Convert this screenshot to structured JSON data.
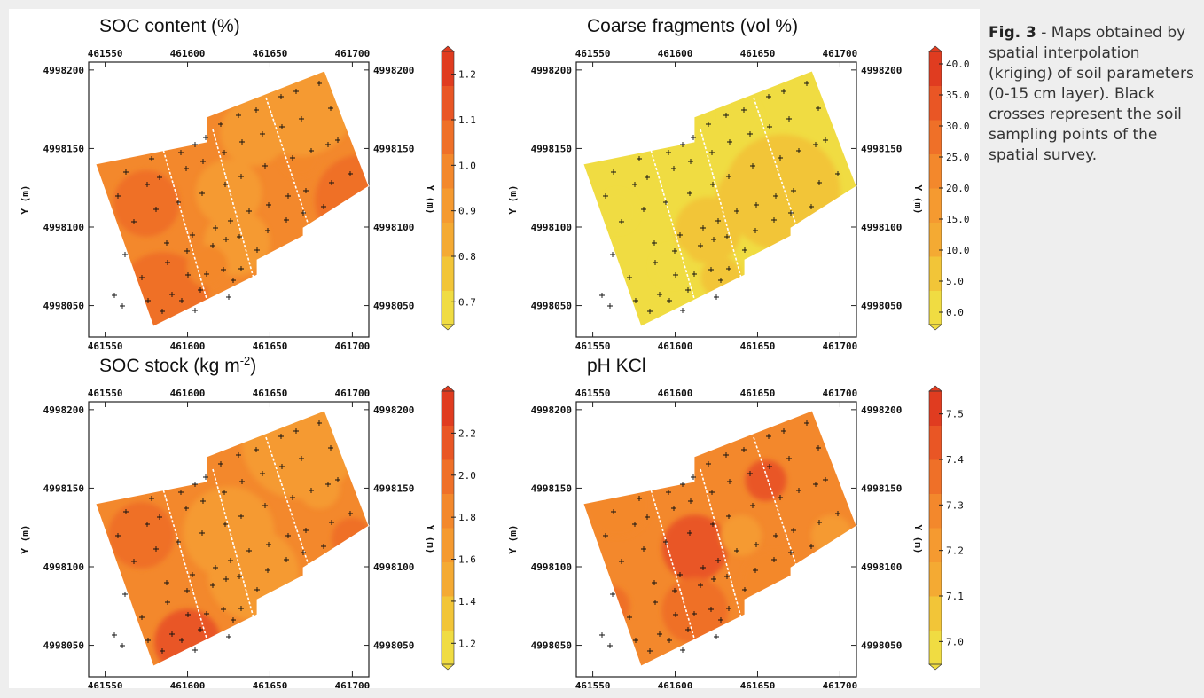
{
  "caption": {
    "figure_label": "Fig. 3",
    "text": " - Maps obtained by spatial interpolation (kriging) of soil parameters (0-15 cm layer). Black crosses represent the soil sampling points of the spatial survey."
  },
  "palette": [
    "#f0dc42",
    "#f2c538",
    "#f4aa33",
    "#f59a30",
    "#f3882c",
    "#ef7028",
    "#e95625",
    "#e03c20"
  ],
  "chart_data": [
    {
      "type": "heatmap",
      "title": "SOC content (%)",
      "title_base": "SOC content (%)",
      "title_sup": "",
      "title_tail": "",
      "xlabel": "",
      "ylabel": "Y (m)",
      "ylabel_right": "Y (m)",
      "x_ticks": [
        "461550",
        "461600",
        "461650",
        "461700"
      ],
      "y_ticks": [
        "4998200",
        "4998150",
        "4998100",
        "4998050"
      ],
      "xlim": [
        461540,
        461710
      ],
      "ylim": [
        4998030,
        4998205
      ],
      "colorbar_ticks": [
        "1.2",
        "1.1",
        "1.0",
        "0.9",
        "0.8",
        "0.7"
      ],
      "colorbar_range": [
        0.65,
        1.25
      ],
      "blobs": [
        {
          "x": 461585,
          "y": 4998055,
          "v": 1.22
        },
        {
          "x": 461575,
          "y": 4998115,
          "v": 1.15
        },
        {
          "x": 461705,
          "y": 4998117,
          "v": 1.2
        },
        {
          "x": 461668,
          "y": 4998145,
          "v": 0.98
        },
        {
          "x": 461640,
          "y": 4998160,
          "v": 0.82
        },
        {
          "x": 461668,
          "y": 4998182,
          "v": 0.72
        },
        {
          "x": 461625,
          "y": 4998122,
          "v": 0.82
        },
        {
          "x": 461630,
          "y": 4998090,
          "v": 0.85
        },
        {
          "x": 461612,
          "y": 4998075,
          "v": 0.98
        }
      ],
      "base": 1.0
    },
    {
      "type": "heatmap",
      "title": "Coarse fragments (vol %)",
      "title_base": "Coarse fragments (vol %)",
      "title_sup": "",
      "title_tail": "",
      "xlabel": "",
      "ylabel": "Y (m)",
      "ylabel_right": "Y (m)",
      "x_ticks": [
        "461550",
        "461600",
        "461650",
        "461700"
      ],
      "y_ticks": [
        "4998200",
        "4998150",
        "4998100",
        "4998050"
      ],
      "xlim": [
        461540,
        461710
      ],
      "ylim": [
        4998030,
        4998205
      ],
      "colorbar_ticks": [
        "40.0",
        "35.0",
        "30.0",
        "25.0",
        "20.0",
        "15.0",
        "10.0",
        "5.0",
        "0.0"
      ],
      "colorbar_range": [
        -2,
        42
      ],
      "blobs": [
        {
          "x": 461665,
          "y": 4998122,
          "v": 21
        },
        {
          "x": 461645,
          "y": 4998118,
          "v": 14
        },
        {
          "x": 461620,
          "y": 4998098,
          "v": 12
        },
        {
          "x": 461628,
          "y": 4998068,
          "v": 8
        },
        {
          "x": 461598,
          "y": 4998075,
          "v": 2
        },
        {
          "x": 461565,
          "y": 4998110,
          "v": 1
        },
        {
          "x": 461640,
          "y": 4998170,
          "v": 1
        }
      ],
      "base": 1.5
    },
    {
      "type": "heatmap",
      "title": "SOC stock (kg m-2)",
      "title_base": "SOC stock (kg m",
      "title_sup": "-2",
      "title_tail": ")",
      "xlabel": "",
      "ylabel": "Y (m)",
      "ylabel_right": "Y (m)",
      "x_ticks": [
        "461550",
        "461600",
        "461650",
        "461700"
      ],
      "y_ticks": [
        "4998200",
        "4998150",
        "4998100",
        "4998050"
      ],
      "xlim": [
        461540,
        461710
      ],
      "ylim": [
        4998030,
        4998205
      ],
      "colorbar_ticks": [
        "2.2",
        "2.0",
        "1.8",
        "1.6",
        "1.4",
        "1.2"
      ],
      "colorbar_range": [
        1.1,
        2.4
      ],
      "blobs": [
        {
          "x": 461572,
          "y": 4998120,
          "v": 2.2
        },
        {
          "x": 461600,
          "y": 4998052,
          "v": 2.25
        },
        {
          "x": 461700,
          "y": 4998118,
          "v": 2.05
        },
        {
          "x": 461625,
          "y": 4998122,
          "v": 1.45
        },
        {
          "x": 461640,
          "y": 4998095,
          "v": 1.45
        },
        {
          "x": 461668,
          "y": 4998180,
          "v": 1.3
        },
        {
          "x": 461680,
          "y": 4998150,
          "v": 1.7
        }
      ],
      "base": 1.9
    },
    {
      "type": "heatmap",
      "title": "pH KCl",
      "title_base": "pH KCl",
      "title_sup": "",
      "title_tail": "",
      "xlabel": "",
      "ylabel": "Y (m)",
      "ylabel_right": "Y (m)",
      "x_ticks": [
        "461550",
        "461600",
        "461650",
        "461700"
      ],
      "y_ticks": [
        "4998200",
        "4998150",
        "4998100",
        "4998050"
      ],
      "xlim": [
        461540,
        461710
      ],
      "ylim": [
        4998030,
        4998205
      ],
      "colorbar_ticks": [
        "7.5",
        "7.4",
        "7.3",
        "7.2",
        "7.1",
        "7.0"
      ],
      "colorbar_range": [
        6.95,
        7.55
      ],
      "blobs": [
        {
          "x": 461612,
          "y": 4998112,
          "v": 7.5
        },
        {
          "x": 461612,
          "y": 4998072,
          "v": 7.45
        },
        {
          "x": 461655,
          "y": 4998155,
          "v": 7.42
        },
        {
          "x": 461660,
          "y": 4998090,
          "v": 7.2
        },
        {
          "x": 461640,
          "y": 4998120,
          "v": 7.22
        },
        {
          "x": 461695,
          "y": 4998120,
          "v": 7.22
        },
        {
          "x": 461565,
          "y": 4998140,
          "v": 7.2
        },
        {
          "x": 461560,
          "y": 4998075,
          "v": 7.38
        }
      ],
      "base": 7.32
    }
  ]
}
